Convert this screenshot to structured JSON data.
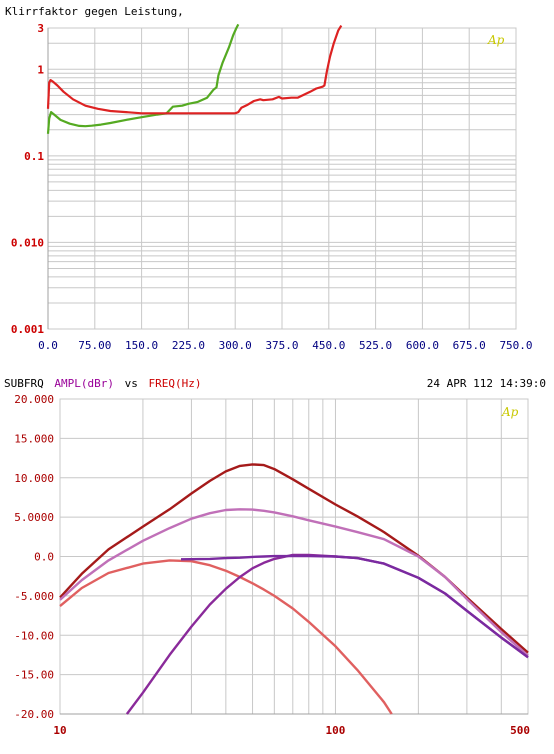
{
  "chart_data": [
    {
      "type": "line",
      "title": "Klirrfaktor gegen Leistung,",
      "xlabel": "",
      "ylabel": "",
      "y_scale": "log",
      "xlim": [
        0,
        750
      ],
      "ylim": [
        0.001,
        3
      ],
      "x_ticks": [
        "0.0",
        "75.00",
        "150.0",
        "225.0",
        "300.0",
        "375.0",
        "450.0",
        "525.0",
        "600.0",
        "675.0",
        "750.0"
      ],
      "y_ticks": [
        "3",
        "1",
        "0.1",
        "0.010",
        "0.001"
      ],
      "grid": true,
      "watermark": "Ap",
      "colors": {
        "axis_ticks_y": "#cc0000",
        "axis_ticks_x": "#000080",
        "grid": "#c8c8c8",
        "watermark": "#c8c800"
      },
      "series": [
        {
          "color": "#55aa22",
          "x": [
            0,
            2,
            5,
            10,
            20,
            35,
            50,
            60,
            70,
            85,
            100,
            125,
            150,
            175,
            190,
            200,
            215,
            225,
            240,
            255,
            265,
            270,
            273,
            280,
            290,
            297,
            302,
            305
          ],
          "y": [
            0.18,
            0.27,
            0.32,
            0.3,
            0.26,
            0.235,
            0.222,
            0.22,
            0.223,
            0.23,
            0.24,
            0.26,
            0.28,
            0.3,
            0.31,
            0.37,
            0.38,
            0.4,
            0.42,
            0.47,
            0.58,
            0.62,
            0.85,
            1.2,
            1.8,
            2.5,
            3,
            3.3
          ]
        },
        {
          "color": "#dd2222",
          "x": [
            0,
            2,
            4,
            8,
            15,
            25,
            40,
            60,
            80,
            100,
            125,
            150,
            200,
            250,
            290,
            300,
            305,
            310,
            320,
            330,
            340,
            345,
            360,
            370,
            375,
            390,
            400,
            420,
            430,
            440,
            443,
            447,
            452,
            458,
            465,
            470
          ],
          "y": [
            0.35,
            0.7,
            0.75,
            0.72,
            0.65,
            0.55,
            0.45,
            0.38,
            0.35,
            0.33,
            0.32,
            0.31,
            0.31,
            0.31,
            0.31,
            0.31,
            0.32,
            0.36,
            0.39,
            0.43,
            0.45,
            0.44,
            0.45,
            0.48,
            0.46,
            0.47,
            0.47,
            0.55,
            0.6,
            0.63,
            0.65,
            0.95,
            1.4,
            2.0,
            2.8,
            3.2
          ]
        }
      ]
    },
    {
      "type": "line",
      "title": "",
      "header": {
        "name": "SUBFRQ",
        "yname": "AMPL(dBr)",
        "vs": "vs",
        "xname": "FREQ(Hz)",
        "date": "24 APR 112 14:39:0"
      },
      "xlabel": "",
      "ylabel": "",
      "x_scale": "log",
      "xlim": [
        10,
        500
      ],
      "ylim": [
        -20,
        20
      ],
      "x_ticks": [
        "10",
        "100",
        "500"
      ],
      "y_ticks": [
        "20.000",
        "15.000",
        "10.000",
        "5.0000",
        "0.0",
        "-5.000",
        "-10.00",
        "-15.00",
        "-20.00"
      ],
      "grid": true,
      "watermark": "Ap",
      "colors": {
        "axis_ticks_y": "#aa0000",
        "axis_ticks_x": "#aa0000",
        "grid": "#c8c8c8",
        "watermark": "#c8c800"
      },
      "series": [
        {
          "color": "#a51a1a",
          "x": [
            10,
            12,
            15,
            20,
            25,
            30,
            35,
            40,
            45,
            50,
            55,
            60,
            70,
            80,
            100,
            120,
            150,
            200,
            250,
            300,
            400,
            500
          ],
          "y": [
            -5.2,
            -2.2,
            0.9,
            3.8,
            6.0,
            8.0,
            9.6,
            10.8,
            11.5,
            11.7,
            11.6,
            11.1,
            9.8,
            8.6,
            6.6,
            5.1,
            3.1,
            0.1,
            -2.6,
            -5.2,
            -9.2,
            -12.2
          ]
        },
        {
          "color": "#c070b8",
          "x": [
            10,
            12,
            15,
            20,
            25,
            30,
            35,
            40,
            45,
            50,
            55,
            60,
            70,
            80,
            100,
            120,
            150,
            200,
            250,
            300,
            400,
            500
          ],
          "y": [
            -5.5,
            -3.0,
            -0.5,
            2.0,
            3.6,
            4.8,
            5.5,
            5.9,
            6.0,
            5.95,
            5.8,
            5.6,
            5.1,
            4.6,
            3.8,
            3.1,
            2.2,
            0.0,
            -2.6,
            -5.4,
            -9.6,
            -12.6
          ]
        },
        {
          "color": "#e06060",
          "x": [
            10,
            12,
            15,
            20,
            25,
            30,
            35,
            40,
            45,
            50,
            55,
            60,
            70,
            80,
            100,
            120,
            150,
            160
          ],
          "y": [
            -6.3,
            -4.0,
            -2.1,
            -0.9,
            -0.5,
            -0.6,
            -1.1,
            -1.8,
            -2.6,
            -3.4,
            -4.2,
            -5.0,
            -6.6,
            -8.3,
            -11.4,
            -14.4,
            -18.5,
            -20.0
          ]
        },
        {
          "color": "#8a2a9a",
          "x": [
            17.5,
            20,
            25,
            30,
            35,
            40,
            45,
            50,
            55,
            60,
            70,
            80,
            100,
            120,
            150,
            200,
            250,
            300,
            400,
            500
          ],
          "y": [
            -20.0,
            -17.3,
            -12.5,
            -8.9,
            -6.1,
            -4.1,
            -2.6,
            -1.5,
            -0.8,
            -0.3,
            0.2,
            0.2,
            0.0,
            -0.2,
            -0.9,
            -2.7,
            -4.7,
            -6.9,
            -10.3,
            -12.8
          ]
        },
        {
          "color": "#7a2aa0",
          "x": [
            27.5,
            35,
            40,
            45,
            50,
            55,
            60,
            70,
            80,
            100,
            120,
            150,
            200,
            250,
            300,
            400,
            500
          ],
          "y": [
            -0.35,
            -0.3,
            -0.2,
            -0.15,
            -0.05,
            0.0,
            0.05,
            0.05,
            0.05,
            0.0,
            -0.2,
            -0.9,
            -2.7,
            -4.7,
            -6.9,
            -10.3,
            -12.8
          ]
        }
      ]
    }
  ]
}
